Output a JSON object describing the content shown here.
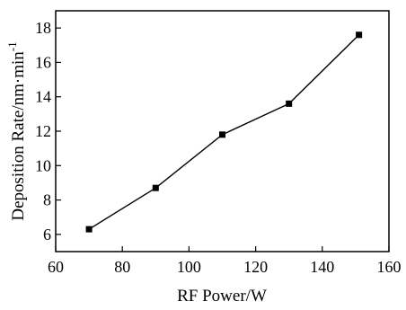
{
  "chart_data": {
    "type": "line",
    "title": "",
    "xlabel": "RF Power/W",
    "ylabel": "Deposition Rate/nm·min",
    "ylabel_superscript": "-1",
    "xlim": [
      60,
      160
    ],
    "ylim": [
      5,
      19
    ],
    "xticks": [
      60,
      80,
      100,
      120,
      140,
      160
    ],
    "yticks": [
      6,
      8,
      10,
      12,
      14,
      16,
      18
    ],
    "grid": false,
    "legend": "none",
    "series": [
      {
        "x": [
          70,
          90,
          110,
          130,
          151
        ],
        "y": [
          6.3,
          8.7,
          11.8,
          13.6,
          17.6
        ]
      }
    ],
    "colors": {
      "line": "#000000",
      "marker": "#000000",
      "axis": "#000000"
    }
  }
}
